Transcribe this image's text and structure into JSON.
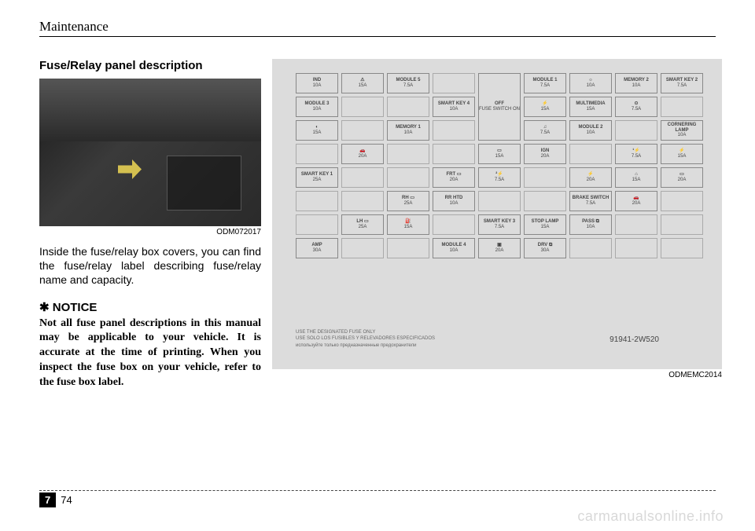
{
  "header": "Maintenance",
  "section_title": "Fuse/Relay panel description",
  "photo_id": "ODM072017",
  "body_text": "Inside the fuse/relay box covers, you can find the fuse/relay label describ­ing fuse/relay name and capacity.",
  "notice_marker": "✱ NOTICE",
  "notice_text": "Not all fuse panel descriptions in this manual may be applicable to your vehicle. It is accurate at the time of printing. When you inspect the fuse box on your vehicle, refer to the fuse box label.",
  "diagram_id": "ODMEMC2014",
  "diagram_footer_1": "USE THE DESIGNATED FUSE ONLY",
  "diagram_footer_2": "USE SOLO LOS FUSIBLES Y RELEVADORES ESPECIFICADOS",
  "diagram_footer_3": "используйте только предназначенные предохранители",
  "part_number": "91941-2W520",
  "chapter": "7",
  "page": "74",
  "watermark": "carmanualsonline.info",
  "fuse_rows": [
    [
      {
        "label": "IND",
        "amp": "10A"
      },
      {
        "label": "⚠",
        "amp": "15A"
      },
      {
        "label": "MODULE 5",
        "amp": "7.5A"
      },
      {
        "label": "",
        "amp": ""
      },
      {
        "label": "OFF",
        "amp": "FUSE SWITCH ON",
        "tall": 3
      },
      {
        "label": "MODULE 1",
        "amp": "7.5A"
      },
      {
        "label": "☼",
        "amp": "10A"
      },
      {
        "label": "MEMORY 2",
        "amp": "10A"
      }
    ],
    [
      {
        "label": "SMART KEY 2",
        "amp": "7.5A"
      },
      {
        "label": "MODULE 3",
        "amp": "10A"
      },
      {
        "label": "",
        "amp": ""
      },
      {
        "label": "",
        "amp": ""
      },
      {
        "label": "SMART KEY 4",
        "amp": "10A"
      },
      {
        "label": "⚡",
        "amp": "15A"
      },
      {
        "label": "MULTIMEDIA",
        "amp": "15A"
      }
    ],
    [
      {
        "label": "⊙",
        "amp": "7.5A"
      },
      {
        "label": "",
        "amp": ""
      },
      {
        "label": "◐",
        "amp": "15A"
      },
      {
        "label": "",
        "amp": ""
      },
      {
        "label": "MEMORY 1",
        "amp": "10A"
      },
      {
        "label": "",
        "amp": ""
      },
      {
        "label": "♫",
        "amp": "7.5A"
      }
    ],
    [
      {
        "label": "MODULE 2",
        "amp": "10A"
      },
      {
        "label": "",
        "amp": ""
      },
      {
        "label": "CORNERING LAMP",
        "amp": "10A"
      },
      {
        "label": "",
        "amp": ""
      },
      {
        "label": "🚗",
        "amp": "20A"
      },
      {
        "label": "",
        "amp": ""
      },
      {
        "label": "",
        "amp": ""
      },
      {
        "label": "▭",
        "amp": "15A"
      }
    ],
    [
      {
        "label": "IGN",
        "amp": "20A"
      },
      {
        "label": "",
        "amp": ""
      },
      {
        "label": "¹⚡",
        "amp": "7.5A"
      },
      {
        "label": "⚡",
        "amp": "15A"
      },
      {
        "label": "SMART KEY 1",
        "amp": "25A"
      },
      {
        "label": "",
        "amp": ""
      },
      {
        "label": "",
        "amp": ""
      },
      {
        "label": "FRT ▭",
        "amp": "20A"
      }
    ],
    [
      {
        "label": "²⚡",
        "amp": "7.5A"
      },
      {
        "label": "",
        "amp": ""
      },
      {
        "label": "⚡",
        "amp": "20A"
      },
      {
        "label": "⌂",
        "amp": "15A"
      },
      {
        "label": "▭",
        "amp": "20A"
      },
      {
        "label": "",
        "amp": ""
      },
      {
        "label": "",
        "amp": ""
      },
      {
        "label": "RH ▭",
        "amp": "25A"
      }
    ],
    [
      {
        "label": "RR HTD",
        "amp": "10A"
      },
      {
        "label": "",
        "amp": ""
      },
      {
        "label": "",
        "amp": ""
      },
      {
        "label": "BRAKE SWITCH",
        "amp": "7.5A"
      },
      {
        "label": "🚗",
        "amp": "20A"
      },
      {
        "label": "",
        "amp": ""
      },
      {
        "label": "",
        "amp": ""
      },
      {
        "label": "LH ▭",
        "amp": "25A"
      }
    ],
    [
      {
        "label": "⛽",
        "amp": "15A"
      },
      {
        "label": "",
        "amp": ""
      },
      {
        "label": "SMART KEY 3",
        "amp": "7.5A"
      },
      {
        "label": "STOP LAMP",
        "amp": "15A"
      },
      {
        "label": "PASS ⧉",
        "amp": "10A"
      },
      {
        "label": "",
        "amp": ""
      },
      {
        "label": "",
        "amp": ""
      },
      {
        "label": "AMP",
        "amp": "30A"
      }
    ],
    [
      {
        "label": "",
        "amp": ""
      },
      {
        "label": "",
        "amp": ""
      },
      {
        "label": "MODULE 4",
        "amp": "10A"
      },
      {
        "label": "▣",
        "amp": "20A"
      },
      {
        "label": "DRV ⧉",
        "amp": "30A"
      },
      {
        "label": "",
        "amp": ""
      },
      {
        "label": "",
        "amp": ""
      },
      {
        "label": "",
        "amp": ""
      }
    ]
  ]
}
